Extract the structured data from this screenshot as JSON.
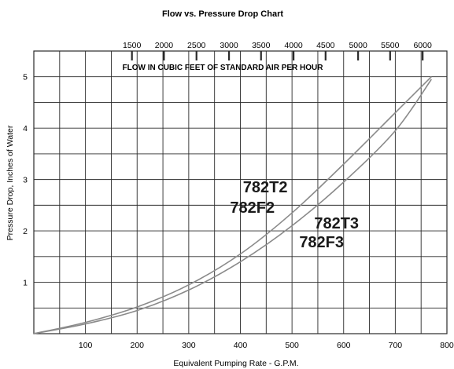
{
  "chart_data": {
    "type": "line",
    "title": "Flow vs. Pressure Drop Chart",
    "xlabel": "Equivalent Pumping Rate - G.P.M.",
    "ylabel": "Pressure Drop, Inches of Water",
    "top_axis_label": "FLOW IN CUBIC FEET OF STANDARD AIR PER HOUR",
    "xlim": [
      0,
      800
    ],
    "ylim": [
      0,
      5.5
    ],
    "x_ticks": [
      100,
      200,
      300,
      400,
      500,
      600,
      700,
      800
    ],
    "y_ticks": [
      1,
      2,
      3,
      4,
      5
    ],
    "top_ticks": [
      {
        "label": "1500",
        "x": 190
      },
      {
        "label": "2000",
        "x": 252
      },
      {
        "label": "2500",
        "x": 315
      },
      {
        "label": "3000",
        "x": 378
      },
      {
        "label": "3500",
        "x": 440
      },
      {
        "label": "4000",
        "x": 503
      },
      {
        "label": "4500",
        "x": 565
      },
      {
        "label": "5000",
        "x": 628
      },
      {
        "label": "5500",
        "x": 690
      },
      {
        "label": "6000",
        "x": 753
      }
    ],
    "grid": true,
    "series": [
      {
        "name": "782T2 782F2",
        "x": [
          0,
          100,
          200,
          300,
          400,
          500,
          600,
          700,
          770
        ],
        "y": [
          0,
          0.22,
          0.52,
          0.95,
          1.55,
          2.35,
          3.3,
          4.3,
          5.0
        ]
      },
      {
        "name": "782T3 782F3",
        "x": [
          0,
          100,
          200,
          300,
          400,
          500,
          600,
          700,
          770
        ],
        "y": [
          0,
          0.19,
          0.45,
          0.85,
          1.4,
          2.1,
          2.95,
          3.95,
          4.95
        ]
      }
    ],
    "annotations": [
      {
        "text": "782T2",
        "x": 405,
        "y": 2.75
      },
      {
        "text": "782F2",
        "x": 380,
        "y": 2.35
      },
      {
        "text": "782T3",
        "x": 543,
        "y": 2.05
      },
      {
        "text": "782F3",
        "x": 514,
        "y": 1.68
      }
    ],
    "colors": {
      "line": "#8a8a8a",
      "grid": "#2a2a2a",
      "text": "#1a1a1a"
    }
  }
}
